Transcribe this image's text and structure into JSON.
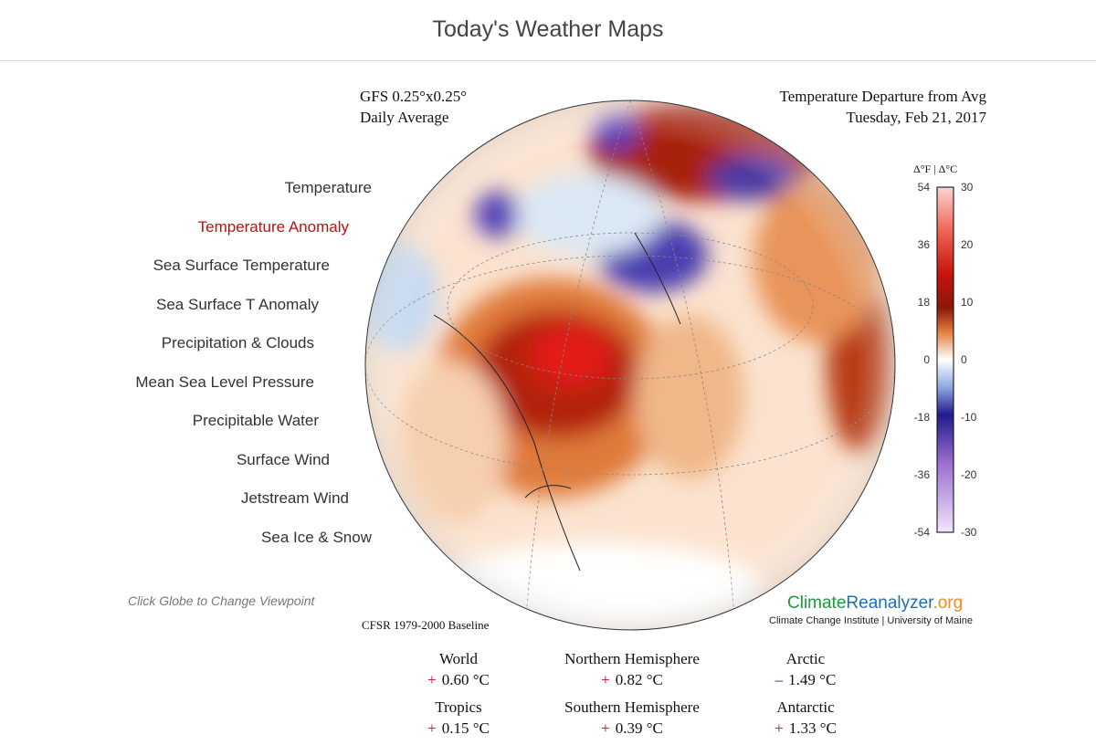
{
  "header": {
    "title": "Today's Weather Maps"
  },
  "menu": {
    "items": [
      "Temperature",
      "Temperature Anomaly",
      "Sea Surface Temperature",
      "Sea Surface T Anomaly",
      "Precipitation & Clouds",
      "Mean Sea Level Pressure",
      "Precipitable Water",
      "Surface Wind",
      "Jetstream Wind",
      "Sea Ice & Snow"
    ],
    "active": 1,
    "hint": "Click Globe to Change Viewpoint"
  },
  "map": {
    "model": "GFS 0.25°x0.25°",
    "period": "Daily Average",
    "variable": "Temperature Departure from Avg",
    "date": "Tuesday, Feb 21, 2017",
    "baseline": "CFSR 1979-2000 Baseline",
    "brand": {
      "parts": [
        "Climate",
        "Reanalyzer",
        ".org"
      ],
      "colors": [
        "#1a9a3a",
        "#1f6fb5",
        "#f08a1c"
      ],
      "sub": "Climate Change Institute | University of Maine"
    },
    "colorbar": {
      "units": "Δ°F | Δ°C",
      "fahrenheit": [
        54,
        36,
        18,
        0,
        -18,
        -36,
        -54
      ],
      "celsius": [
        30,
        20,
        10,
        0,
        -10,
        -20,
        -30
      ]
    }
  },
  "stats": [
    {
      "label": "World",
      "sign": "+",
      "value": "0.60 °C",
      "color": "#d0021b"
    },
    {
      "label": "Northern Hemisphere",
      "sign": "+",
      "value": "0.82 °C",
      "color": "#d0021b"
    },
    {
      "label": "Arctic",
      "sign": "–",
      "value": "1.49 °C",
      "color": "#1c1fa0"
    },
    {
      "label": "Tropics",
      "sign": "+",
      "value": "0.15 °C",
      "color": "#d0021b"
    },
    {
      "label": "Southern Hemisphere",
      "sign": "+",
      "value": "0.39 °C",
      "color": "#d0021b"
    },
    {
      "label": "Antarctic",
      "sign": "+",
      "value": "1.33 °C",
      "color": "#d0021b"
    }
  ]
}
